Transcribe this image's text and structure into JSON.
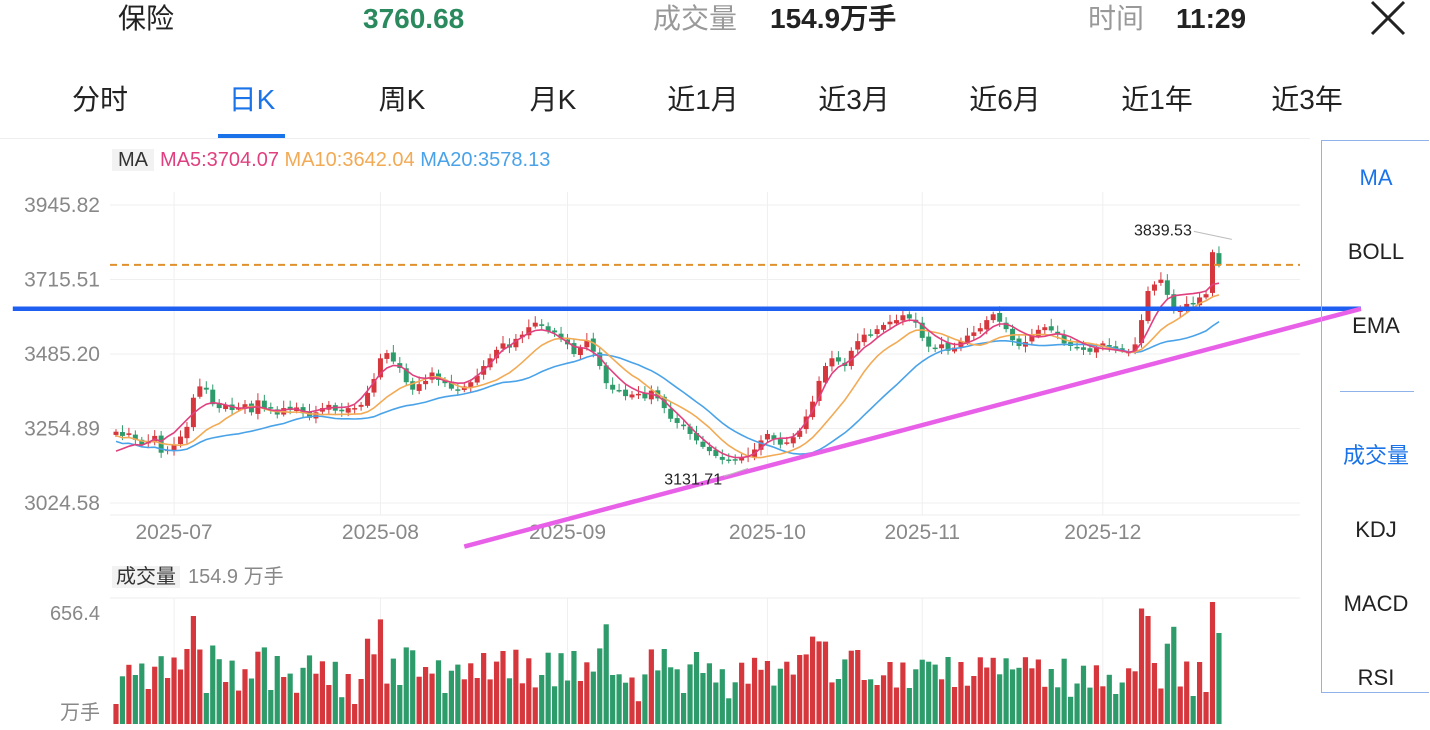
{
  "header": {
    "name": "保险",
    "price": "3760.68",
    "volume_label": "成交量",
    "volume_value": "154.9万手",
    "time_label": "时间",
    "time_value": "11:29",
    "close_icon": "close-icon"
  },
  "tabs": [
    {
      "label": "分时",
      "active": false
    },
    {
      "label": "日K",
      "active": true
    },
    {
      "label": "周K",
      "active": false
    },
    {
      "label": "月K",
      "active": false
    },
    {
      "label": "近1月",
      "active": false
    },
    {
      "label": "近3月",
      "active": false
    },
    {
      "label": "近6月",
      "active": false
    },
    {
      "label": "近1年",
      "active": false
    },
    {
      "label": "近3年",
      "active": false
    }
  ],
  "ma_legend": {
    "tag": "MA",
    "ma5": "MA5:3704.07",
    "ma10": "MA10:3642.04",
    "ma20": "MA20:3578.13"
  },
  "volume_legend": {
    "tag": "成交量",
    "value": "154.9 万手"
  },
  "side_panel": {
    "main_indicators": [
      "MA",
      "BOLL",
      "EMA"
    ],
    "sub_indicators": [
      "成交量",
      "KDJ",
      "MACD",
      "RSI"
    ]
  },
  "colors": {
    "up": "#d6373d",
    "down": "#2e9b6b",
    "ma5": "#e0407f",
    "ma10": "#f2aa55",
    "ma20": "#4aa3e8",
    "accent": "#1a73e8",
    "support_line": "#e860e8",
    "resistance_line": "#1e5ef0",
    "ref_dashed": "#e0902e"
  },
  "chart_data": {
    "type": "candlestick",
    "y_ticks": [
      "3945.82",
      "3715.51",
      "3485.20",
      "3254.89",
      "3024.58"
    ],
    "y_range": [
      3024.58,
      3945.82
    ],
    "x_ticks": [
      {
        "label": "2025-07",
        "index": 9
      },
      {
        "label": "2025-08",
        "index": 41
      },
      {
        "label": "2025-09",
        "index": 70
      },
      {
        "label": "2025-10",
        "index": 101
      },
      {
        "label": "2025-11",
        "index": 125
      },
      {
        "label": "2025-12",
        "index": 153
      }
    ],
    "high_annotation": {
      "label": "3839.53",
      "index": 173,
      "value": 3839.53
    },
    "low_annotation": {
      "label": "3131.71",
      "index": 98,
      "value": 3131.71
    },
    "ref_price": 3760.68,
    "trendlines": [
      {
        "name": "resistance",
        "from": {
          "index": -16,
          "value": 3625
        },
        "to": {
          "index": 193,
          "value": 3625
        }
      },
      {
        "name": "support",
        "from": {
          "index": 54,
          "value": 2890
        },
        "to": {
          "index": 193,
          "value": 3625
        }
      }
    ],
    "closes": [
      3245,
      3232,
      3240,
      3220,
      3205,
      3215,
      3232,
      3180,
      3190,
      3205,
      3230,
      3260,
      3350,
      3385,
      3375,
      3330,
      3318,
      3328,
      3312,
      3318,
      3330,
      3305,
      3342,
      3318,
      3318,
      3298,
      3318,
      3312,
      3320,
      3302,
      3288,
      3305,
      3318,
      3328,
      3310,
      3308,
      3318,
      3318,
      3328,
      3365,
      3408,
      3472,
      3488,
      3462,
      3442,
      3398,
      3375,
      3392,
      3402,
      3428,
      3405,
      3395,
      3378,
      3372,
      3385,
      3398,
      3418,
      3448,
      3472,
      3498,
      3518,
      3505,
      3532,
      3545,
      3568,
      3582,
      3572,
      3555,
      3552,
      3530,
      3515,
      3485,
      3505,
      3528,
      3492,
      3448,
      3395,
      3375,
      3372,
      3355,
      3360,
      3362,
      3348,
      3372,
      3348,
      3318,
      3285,
      3272,
      3262,
      3238,
      3218,
      3198,
      3185,
      3170,
      3158,
      3155,
      3158,
      3165,
      3172,
      3190,
      3218,
      3238,
      3222,
      3205,
      3212,
      3228,
      3248,
      3292,
      3338,
      3402,
      3448,
      3472,
      3462,
      3448,
      3495,
      3525,
      3545,
      3542,
      3562,
      3575,
      3585,
      3590,
      3605,
      3595,
      3582,
      3535,
      3508,
      3502,
      3515,
      3495,
      3505,
      3525,
      3542,
      3552,
      3565,
      3590,
      3608,
      3585,
      3562,
      3528,
      3510,
      3522,
      3545,
      3560,
      3568,
      3558,
      3545,
      3518,
      3510,
      3505,
      3498,
      3492,
      3505,
      3518,
      3510,
      3500,
      3495,
      3492,
      3515,
      3590,
      3680,
      3700,
      3715,
      3668,
      3620,
      3625,
      3640,
      3640,
      3660,
      3670,
      3800,
      3760
    ],
    "ma5": [
      3185,
      3192,
      3200,
      3205,
      3203,
      3212,
      3222,
      3215,
      3230,
      3242,
      3262,
      3282,
      3302,
      3318,
      3330,
      3335,
      3332,
      3328,
      3322,
      3318,
      3318,
      3320,
      3322,
      3318,
      3312,
      3310,
      3312,
      3315,
      3315,
      3308,
      3306,
      3310,
      3315,
      3318,
      3320,
      3320,
      3322,
      3330,
      3348,
      3372,
      3398,
      3425,
      3442,
      3450,
      3448,
      3435,
      3420,
      3412,
      3410,
      3412,
      3410,
      3402,
      3398,
      3395,
      3396,
      3404,
      3418,
      3435,
      3455,
      3478,
      3498,
      3510,
      3525,
      3538,
      3550,
      3558,
      3560,
      3556,
      3548,
      3535,
      3522,
      3508,
      3505,
      3502,
      3490,
      3475,
      3450,
      3430,
      3410,
      3392,
      3380,
      3370,
      3364,
      3362,
      3355,
      3340,
      3320,
      3302,
      3282,
      3260,
      3240,
      3222,
      3205,
      3190,
      3178,
      3170,
      3165,
      3165,
      3168,
      3178,
      3195,
      3212,
      3222,
      3225,
      3225,
      3230,
      3248,
      3275,
      3310,
      3350,
      3392,
      3425,
      3445,
      3455,
      3468,
      3485,
      3505,
      3518,
      3535,
      3550,
      3562,
      3575,
      3585,
      3590,
      3588,
      3575,
      3558,
      3542,
      3530,
      3520,
      3515,
      3515,
      3520,
      3528,
      3538,
      3555,
      3570,
      3578,
      3578,
      3570,
      3558,
      3548,
      3540,
      3538,
      3540,
      3545,
      3548,
      3545,
      3538,
      3528,
      3518,
      3510,
      3505,
      3502,
      3500,
      3498,
      3495,
      3490,
      3495,
      3520,
      3558,
      3598,
      3632,
      3655,
      3665,
      3668,
      3670,
      3672,
      3675,
      3680,
      3700,
      3704
    ]
  }
}
